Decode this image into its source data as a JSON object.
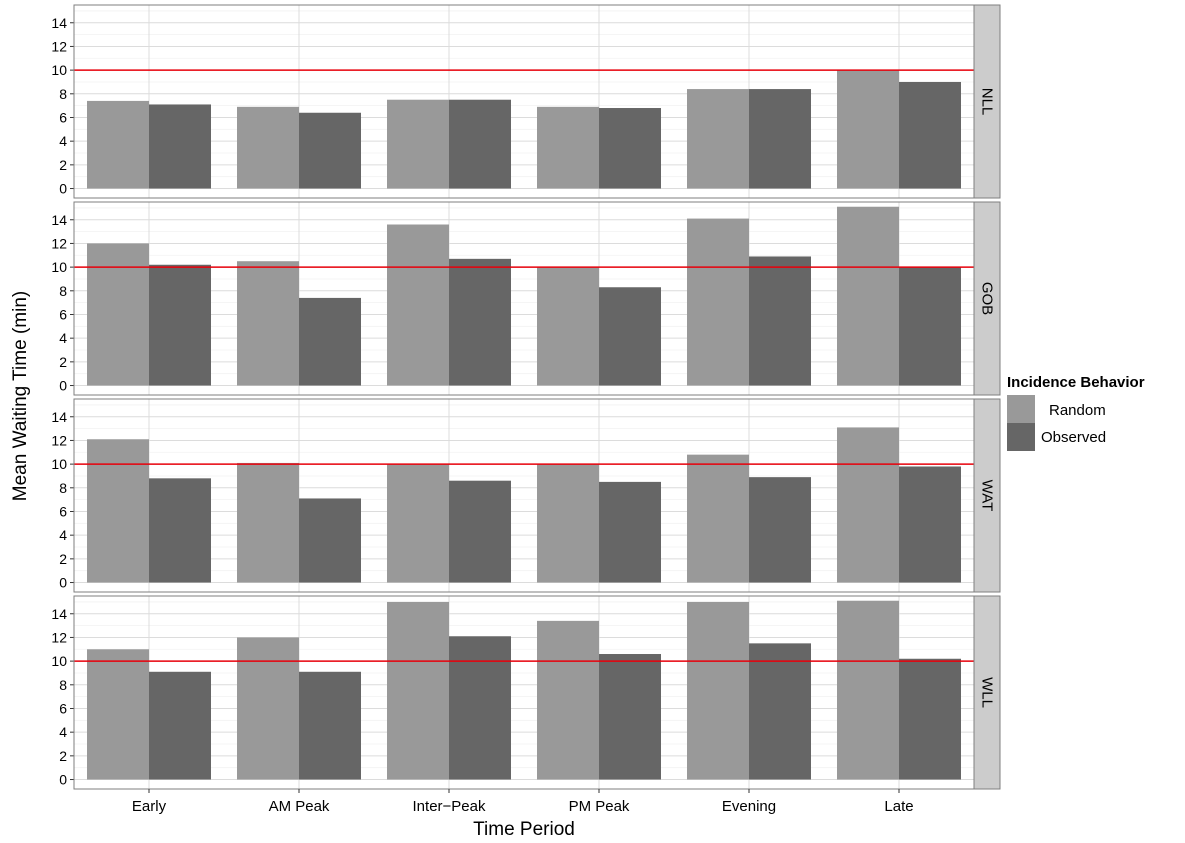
{
  "chart_data": {
    "type": "bar",
    "xlabel": "Time Period",
    "ylabel": "Mean Waiting Time (min)",
    "categories": [
      "Early",
      "AM Peak",
      "Inter−Peak",
      "PM Peak",
      "Evening",
      "Late"
    ],
    "yticks": [
      "0",
      "2",
      "4",
      "6",
      "8",
      "10",
      "12",
      "14"
    ],
    "ylim": [
      -0.8,
      15.5
    ],
    "reference_line": 10,
    "reference_color": "#e8000b",
    "grid": true,
    "legend": {
      "title": "Incidence Behavior",
      "position": "right",
      "entries": [
        {
          "name": "Random",
          "color": "#999999"
        },
        {
          "name": "Observed",
          "color": "#666666"
        }
      ]
    },
    "panels": [
      {
        "label": "NLL",
        "series": [
          {
            "name": "Random",
            "values": [
              7.4,
              6.9,
              7.5,
              6.9,
              8.4,
              10.0
            ]
          },
          {
            "name": "Observed",
            "values": [
              7.1,
              6.4,
              7.5,
              6.8,
              8.4,
              9.0
            ]
          }
        ]
      },
      {
        "label": "GOB",
        "series": [
          {
            "name": "Random",
            "values": [
              12.0,
              10.5,
              13.6,
              10.0,
              14.1,
              15.1
            ]
          },
          {
            "name": "Observed",
            "values": [
              10.2,
              7.4,
              10.7,
              8.3,
              10.9,
              10.0
            ]
          }
        ]
      },
      {
        "label": "WAT",
        "series": [
          {
            "name": "Random",
            "values": [
              12.1,
              10.1,
              10.0,
              10.0,
              10.8,
              13.1
            ]
          },
          {
            "name": "Observed",
            "values": [
              8.8,
              7.1,
              8.6,
              8.5,
              8.9,
              9.8
            ]
          }
        ]
      },
      {
        "label": "WLL",
        "series": [
          {
            "name": "Random",
            "values": [
              11.0,
              12.0,
              15.0,
              13.4,
              15.0,
              15.1
            ]
          },
          {
            "name": "Observed",
            "values": [
              9.1,
              9.1,
              12.1,
              10.6,
              11.5,
              10.2
            ]
          }
        ]
      }
    ]
  }
}
